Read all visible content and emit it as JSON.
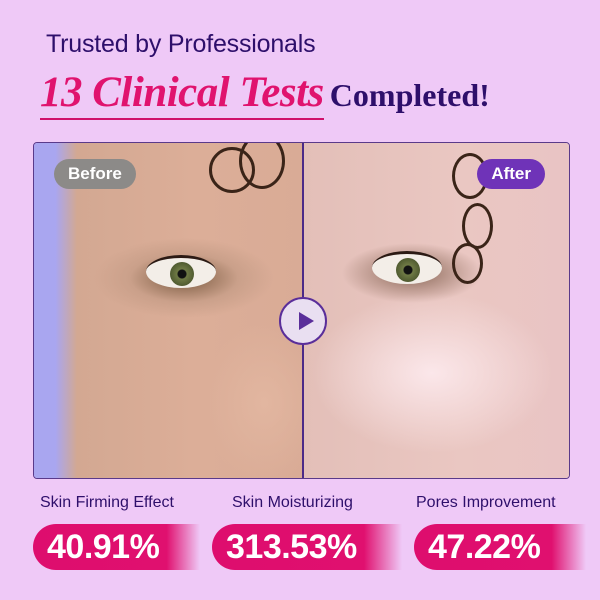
{
  "header": {
    "subtitle": "Trusted by Professionals",
    "highlight": "13 Clinical Tests",
    "suffix": "Completed!"
  },
  "comparison": {
    "before_label": "Before",
    "after_label": "After",
    "play_icon": "play-icon"
  },
  "stats": [
    {
      "label": "Skin Firming Effect",
      "value": "40.91%"
    },
    {
      "label": "Skin Moisturizing",
      "value": "313.53%"
    },
    {
      "label": "Pores Improvement",
      "value": "47.22%"
    }
  ],
  "colors": {
    "background": "#efc9f7",
    "accent": "#e0136e",
    "heading": "#2e0f6b",
    "after_tag": "#6f33b8"
  }
}
